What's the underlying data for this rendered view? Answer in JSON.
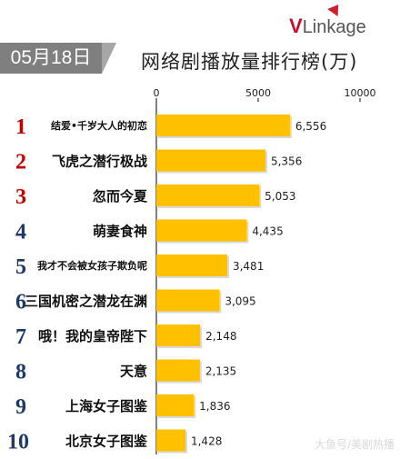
{
  "logo": {
    "v": "V",
    "rest": "Linkage"
  },
  "date_badge": "05月18日",
  "title": "网络剧播放量排行榜(万)",
  "watermark": "大鱼号/美剧热播",
  "colors": {
    "bar": "#ffc000",
    "rank": "#c00000",
    "rank_alt": "#1f3864",
    "axis": "#000000"
  },
  "chart_data": {
    "type": "bar",
    "orientation": "horizontal",
    "title": "网络剧播放量排行榜(万)",
    "xlim": [
      0,
      10000
    ],
    "x_ticks": [
      0,
      5000,
      10000
    ],
    "x_tick_labels": [
      "0",
      "5000",
      "10000"
    ],
    "ranks": [
      "1",
      "2",
      "3",
      "4",
      "5",
      "6",
      "7",
      "8",
      "9",
      "10"
    ],
    "categories": [
      "结爱•千岁大人的初恋",
      "飞虎之潜行极战",
      "忽而今夏",
      "萌妻食神",
      "我才不会被女孩子欺负呢",
      "三国机密之潜龙在渊",
      "哦！我的皇帝陛下",
      "天意",
      "上海女子图鉴",
      "北京女子图鉴"
    ],
    "values": [
      6556,
      5356,
      5053,
      4435,
      3481,
      3095,
      2148,
      2135,
      1836,
      1428
    ],
    "value_labels": [
      "6,556",
      "5,356",
      "5,053",
      "4,435",
      "3,481",
      "3,095",
      "2,148",
      "2,135",
      "1,836",
      "1,428"
    ],
    "grid": false
  }
}
